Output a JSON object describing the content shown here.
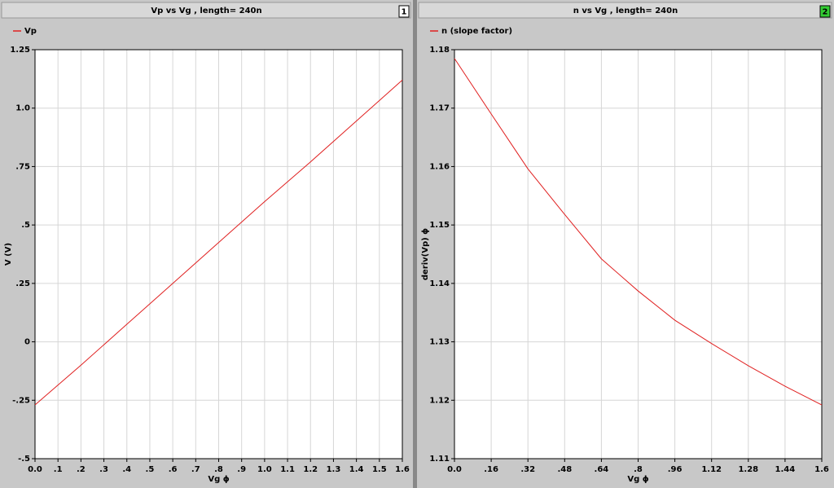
{
  "chart_data": [
    {
      "type": "line",
      "title": "Vp vs Vg , length=  240n",
      "panel": "1",
      "x_label": "Vg ϕ",
      "y_label": "V (V)",
      "x": [
        0,
        0.2,
        0.4,
        0.6,
        0.8,
        1.0,
        1.2,
        1.4,
        1.6
      ],
      "series": [
        {
          "name": "Vp",
          "color": "#e02020",
          "values": [
            -0.27,
            -0.1,
            0.075,
            0.25,
            0.425,
            0.6,
            0.77,
            0.945,
            1.12
          ]
        }
      ],
      "xlim": [
        0,
        1.6
      ],
      "xticks": [
        {
          "value": 0,
          "label": "0.0"
        },
        {
          "value": 0.1,
          "label": ".1"
        },
        {
          "value": 0.2,
          "label": ".2"
        },
        {
          "value": 0.3,
          "label": ".3"
        },
        {
          "value": 0.4,
          "label": ".4"
        },
        {
          "value": 0.5,
          "label": ".5"
        },
        {
          "value": 0.6,
          "label": ".6"
        },
        {
          "value": 0.7,
          "label": ".7"
        },
        {
          "value": 0.8,
          "label": ".8"
        },
        {
          "value": 0.9,
          "label": ".9"
        },
        {
          "value": 1.0,
          "label": "1.0"
        },
        1.1,
        1.2,
        1.3,
        1.4,
        1.5,
        1.6
      ],
      "ylim": [
        -0.5,
        1.25
      ],
      "yticks": [
        {
          "value": -0.5,
          "label": "-.5"
        },
        {
          "value": -0.25,
          "label": "-.25"
        },
        0,
        {
          "value": 0.25,
          "label": ".25"
        },
        {
          "value": 0.5,
          "label": ".5"
        },
        {
          "value": 0.75,
          "label": ".75"
        },
        {
          "value": 1.0,
          "label": "1.0"
        },
        1.25
      ],
      "grid": true
    },
    {
      "type": "line",
      "title": "n vs Vg , length=  240n",
      "panel": "2",
      "x_label": "Vg ϕ",
      "y_label": "deriv(Vp) ϕ",
      "x": [
        0,
        0.16,
        0.32,
        0.48,
        0.64,
        0.8,
        0.96,
        1.12,
        1.28,
        1.44,
        1.6
      ],
      "series": [
        {
          "name": "n (slope factor)",
          "color": "#e02020",
          "values": [
            1.1785,
            1.169,
            1.1596,
            1.1518,
            1.1442,
            1.1387,
            1.1337,
            1.1297,
            1.1259,
            1.1224,
            1.1192
          ]
        }
      ],
      "xlim": [
        0,
        1.6
      ],
      "xticks": [
        {
          "value": 0,
          "label": "0.0"
        },
        {
          "value": 0.16,
          "label": ".16"
        },
        {
          "value": 0.32,
          "label": ".32"
        },
        {
          "value": 0.48,
          "label": ".48"
        },
        {
          "value": 0.64,
          "label": ".64"
        },
        {
          "value": 0.8,
          "label": ".8"
        },
        {
          "value": 0.96,
          "label": ".96"
        },
        1.12,
        1.28,
        1.44,
        1.6
      ],
      "ylim": [
        1.11,
        1.18
      ],
      "yticks": [
        1.11,
        1.12,
        1.13,
        1.14,
        1.15,
        1.16,
        1.17,
        1.18
      ],
      "grid": true
    }
  ]
}
